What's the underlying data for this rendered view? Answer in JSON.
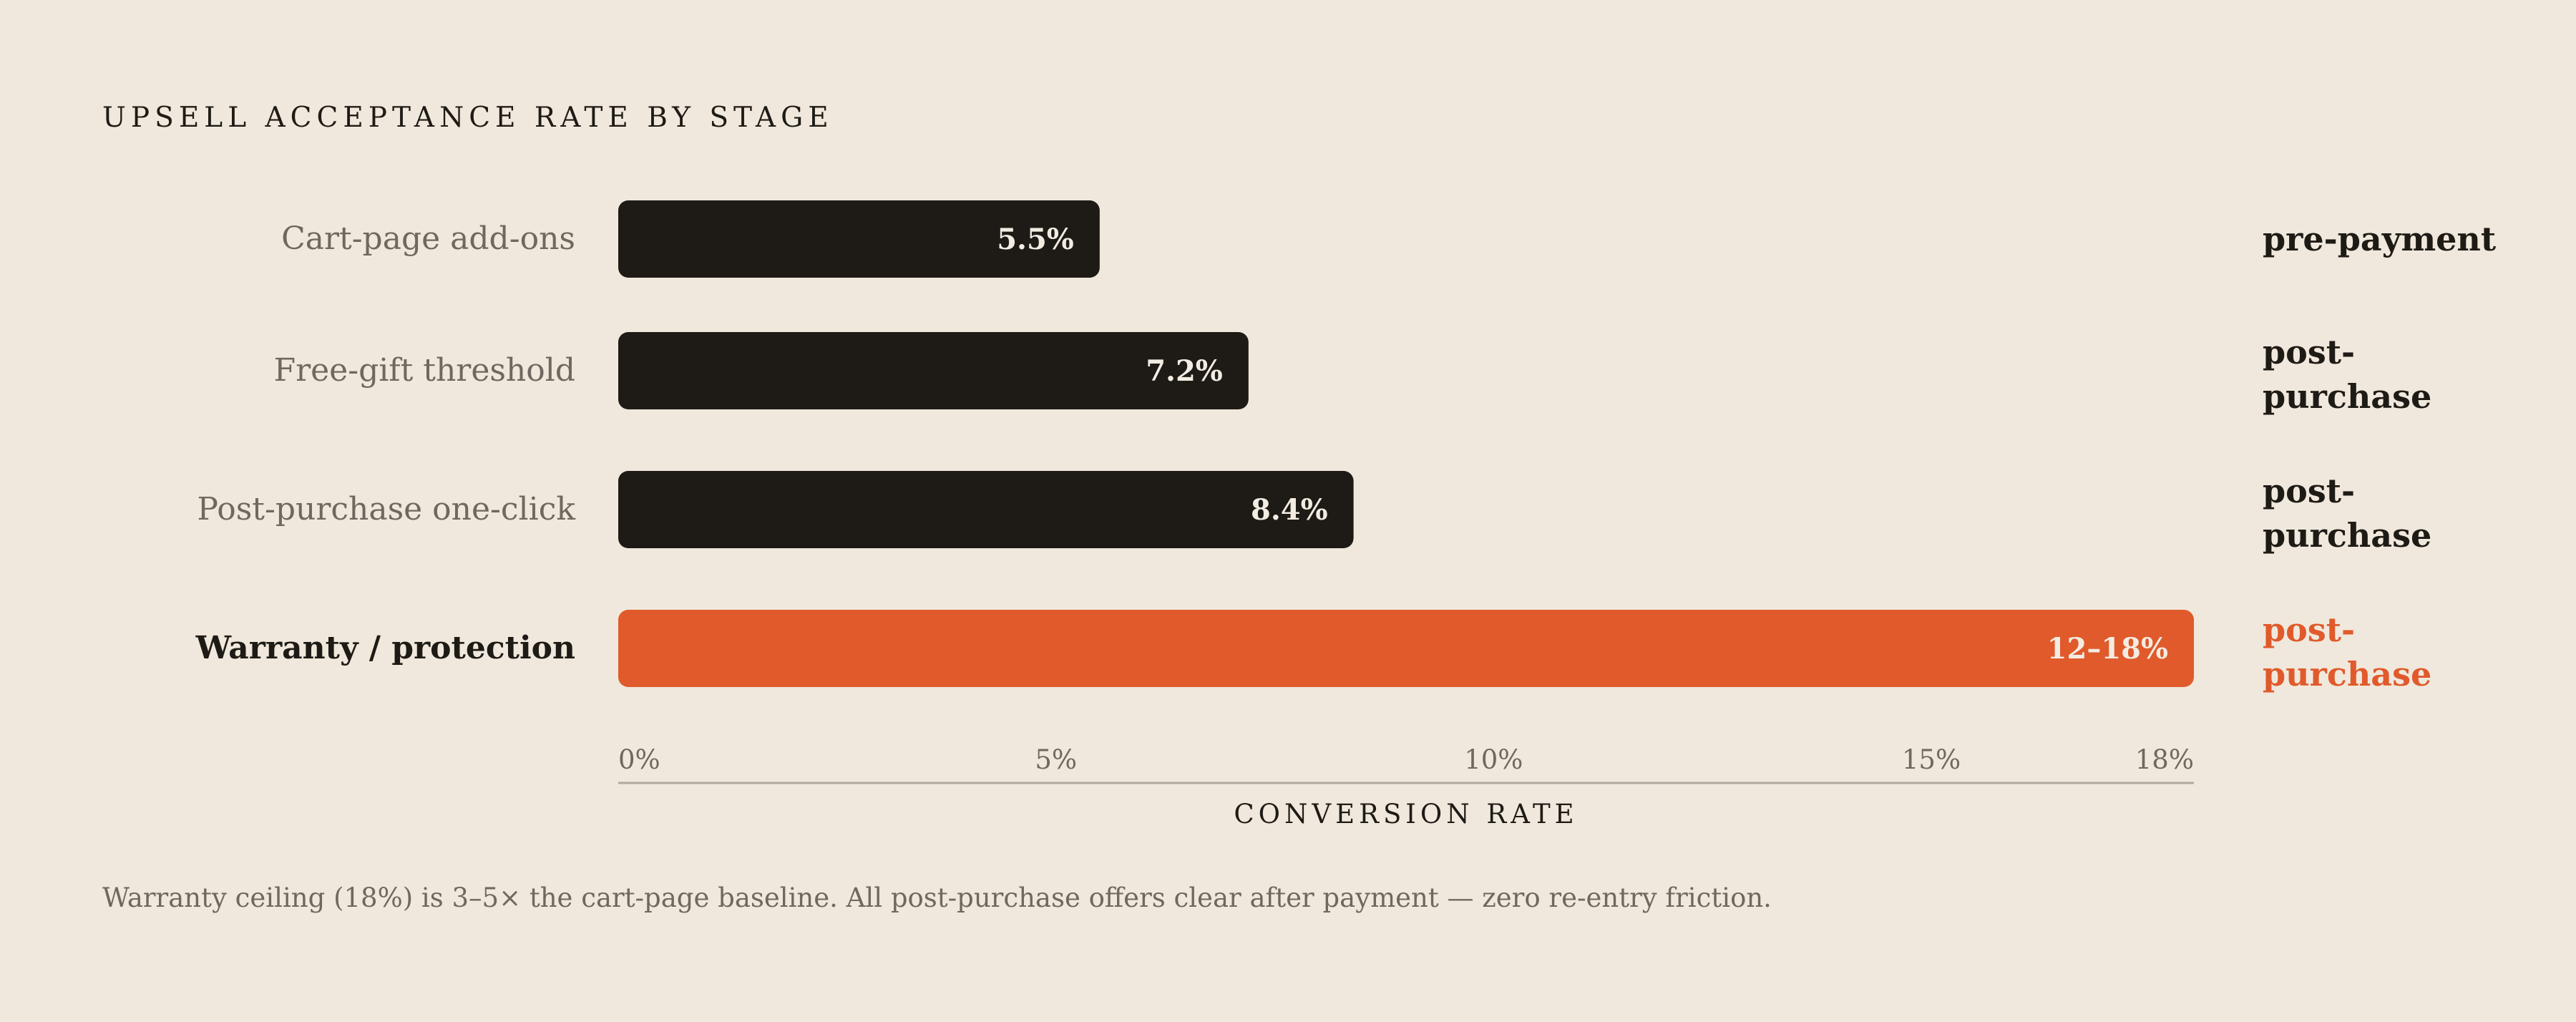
{
  "title": "UPSELL ACCEPTANCE RATE BY STAGE",
  "footnote": "Warranty ceiling (18%) is 3–5× the cart-page baseline. All post-purchase offers clear after payment — zero re-entry friction.",
  "colors": {
    "background": "#f0e8dc",
    "bar": "#1e1b16",
    "highlight": "#e05a2b",
    "muted_text": "#6f6860",
    "axis": "#b0a89c"
  },
  "chart_data": {
    "type": "bar",
    "orientation": "horizontal",
    "xlabel": "CONVERSION RATE",
    "ylabel": "",
    "xlim": [
      0,
      18
    ],
    "x_ticks": [
      {
        "value": 0,
        "label": "0%"
      },
      {
        "value": 5,
        "label": "5%"
      },
      {
        "value": 10,
        "label": "10%"
      },
      {
        "value": 15,
        "label": "15%"
      },
      {
        "value": 18,
        "label": "18%"
      }
    ],
    "grid": false,
    "bars": [
      {
        "category": "Cart-page add-ons",
        "value": 5.5,
        "value_label": "5.5%",
        "stage": "pre-payment",
        "highlight": false
      },
      {
        "category": "Free-gift threshold",
        "value": 7.2,
        "value_label": "7.2%",
        "stage": "post-purchase",
        "highlight": false
      },
      {
        "category": "Post-purchase one-click",
        "value": 8.4,
        "value_label": "8.4%",
        "stage": "post-purchase",
        "highlight": false
      },
      {
        "category": "Warranty / protection",
        "value": 18,
        "range": [
          12,
          18
        ],
        "value_label": "12–18%",
        "stage": "post-purchase",
        "highlight": true
      }
    ]
  }
}
